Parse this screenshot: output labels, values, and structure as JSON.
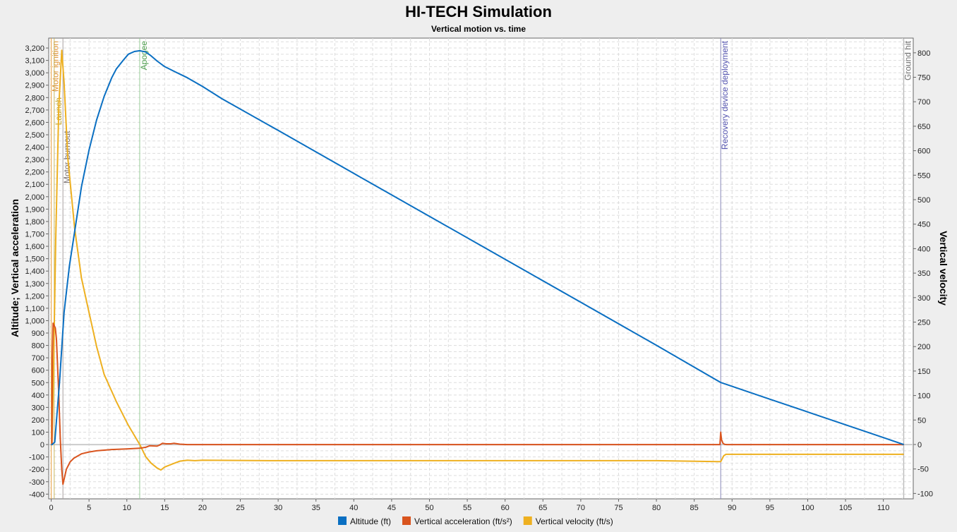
{
  "chart_data": {
    "type": "line",
    "title": "HI-TECH Simulation",
    "subtitle": "Vertical motion vs. time",
    "ylabel_left": "Altitude; Vertical acceleration",
    "ylabel_right": "Vertical velocity",
    "xlim": [
      -0.33,
      113.95
    ],
    "ylim_left": [
      -438,
      3280
    ],
    "ylim_right": [
      -111,
      830
    ],
    "grid": true,
    "legend_position": "bottom",
    "x_ticks": [
      0,
      5,
      10,
      15,
      20,
      25,
      30,
      35,
      40,
      45,
      50,
      55,
      60,
      65,
      70,
      75,
      80,
      85,
      90,
      95,
      100,
      105,
      110
    ],
    "y_left_ticks": [
      "-400",
      "-300",
      "-200",
      "-100",
      "0",
      "100",
      "200",
      "300",
      "400",
      "500",
      "600",
      "700",
      "800",
      "900",
      "1,000",
      "1,100",
      "1,200",
      "1,300",
      "1,400",
      "1,500",
      "1,600",
      "1,700",
      "1,800",
      "1,900",
      "2,000",
      "2,100",
      "2,200",
      "2,300",
      "2,400",
      "2,500",
      "2,600",
      "2,700",
      "2,800",
      "2,900",
      "3,000",
      "3,100",
      "3,200"
    ],
    "y_right_ticks": [
      "-100",
      "-50",
      "0",
      "50",
      "100",
      "150",
      "200",
      "250",
      "300",
      "350",
      "400",
      "450",
      "500",
      "550",
      "600",
      "650",
      "700",
      "750",
      "800"
    ],
    "events": [
      {
        "label": "Motor ignition",
        "t": 0.0,
        "color": "#e8a040",
        "text_color": "#e09030"
      },
      {
        "label": "Launch",
        "t": 0.4,
        "color": "#c8b860",
        "text_color": "#c0a020"
      },
      {
        "label": "Motor burnout",
        "t": 1.55,
        "color": "#a8a0a0",
        "text_color": "#7a7070"
      },
      {
        "label": "Apogee",
        "t": 11.7,
        "color": "#98cc98",
        "text_color": "#50a050"
      },
      {
        "label": "Recovery device deployment",
        "t": 88.5,
        "color": "#8888b8",
        "text_color": "#5555b0"
      },
      {
        "label": "Ground hit",
        "t": 112.7,
        "color": "#a8a8a8",
        "text_color": "#707070"
      }
    ],
    "series": [
      {
        "name": "Altitude (ft)",
        "axis": "left",
        "color": "#0a6fc2",
        "x": [
          0,
          0.1,
          0.47,
          1.1,
          1.7,
          2.4,
          3.1,
          4,
          5,
          6,
          7,
          8,
          8.6,
          9.5,
          10.2,
          11,
          11.7,
          12.5,
          13.2,
          14,
          15,
          16.4,
          18,
          20,
          22.6,
          30,
          40,
          50,
          60,
          70,
          80,
          88.5,
          95,
          100,
          105,
          110,
          112.7
        ],
        "y": [
          0,
          0,
          20,
          500,
          1067,
          1440,
          1720,
          2080,
          2375,
          2620,
          2810,
          2960,
          3030,
          3100,
          3150,
          3172,
          3178,
          3168,
          3137,
          3095,
          3050,
          3007,
          2960,
          2890,
          2790,
          2535,
          2188,
          1842,
          1495,
          1148,
          801,
          501,
          366,
          263,
          159,
          56,
          0
        ]
      },
      {
        "name": "Vertical acceleration (ft/s²)",
        "axis": "left",
        "color": "#d9541e",
        "x": [
          0,
          0.1,
          0.15,
          0.25,
          0.4,
          0.55,
          0.7,
          0.8,
          1.0,
          1.2,
          1.4,
          1.55,
          1.7,
          2,
          2.5,
          3,
          4,
          5,
          6,
          7,
          8,
          10,
          11.7,
          12.5,
          13,
          14,
          14.3,
          14.7,
          15.2,
          15.8,
          16.2,
          17,
          18,
          20,
          30,
          40,
          50,
          60,
          70,
          80,
          88.4,
          88.5,
          88.6,
          88.8,
          89.0,
          89.3,
          95,
          100,
          112.7
        ],
        "y": [
          0,
          0,
          700,
          980,
          960,
          940,
          850,
          700,
          400,
          50,
          -200,
          -320,
          -280,
          -200,
          -140,
          -110,
          -75,
          -60,
          -50,
          -45,
          -40,
          -35,
          -30,
          -22,
          -10,
          -12,
          -5,
          10,
          6,
          6,
          10,
          3,
          0,
          0,
          0,
          0,
          0,
          0,
          0,
          0,
          0,
          100,
          40,
          10,
          2,
          0,
          0,
          0,
          0
        ]
      },
      {
        "name": "Vertical velocity (ft/s)",
        "axis": "right",
        "color": "#eeb020",
        "x": [
          0,
          0.1,
          0.3,
          0.6,
          1.0,
          1.4,
          1.7,
          2.2,
          3.1,
          4,
          5,
          6,
          7,
          8.6,
          10.2,
          11.7,
          12.5,
          13.2,
          14,
          14.5,
          15,
          16,
          17,
          18,
          19,
          20,
          30,
          40,
          50,
          60,
          70,
          80,
          88.5,
          88.9,
          89.2,
          95,
          100,
          112.7
        ],
        "y": [
          0,
          0,
          150,
          420,
          690,
          805,
          739,
          585,
          441,
          340,
          270,
          200,
          143,
          88,
          39,
          0,
          -25,
          -38,
          -48,
          -52,
          -46,
          -40,
          -34,
          -32,
          -33,
          -32,
          -33,
          -33,
          -33,
          -33,
          -33,
          -33,
          -35,
          -23,
          -20,
          -20,
          -20,
          -20
        ]
      }
    ]
  }
}
